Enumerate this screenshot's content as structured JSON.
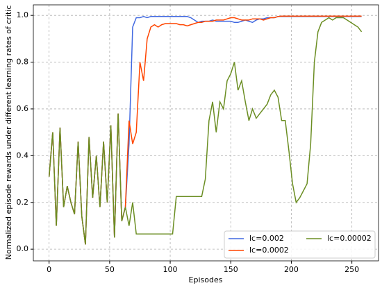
{
  "chart_data": {
    "type": "line",
    "xlabel": "Episodes",
    "ylabel": "Normalized episode rewards under different learning rates of critic",
    "x": [
      0,
      3,
      6,
      9,
      12,
      15,
      18,
      21,
      24,
      27,
      30,
      33,
      36,
      39,
      42,
      45,
      48,
      51,
      54,
      57,
      60,
      63,
      66,
      69,
      72,
      75,
      78,
      81,
      84,
      87,
      90,
      93,
      96,
      99,
      102,
      105,
      108,
      111,
      114,
      117,
      120,
      123,
      126,
      129,
      132,
      135,
      138,
      141,
      144,
      147,
      150,
      153,
      156,
      159,
      162,
      165,
      168,
      171,
      174,
      177,
      180,
      183,
      186,
      189,
      192,
      195,
      198,
      201,
      204,
      207,
      210,
      213,
      216,
      219,
      222,
      225,
      228,
      231,
      234,
      237,
      240,
      243,
      246,
      249,
      252,
      255,
      258
    ],
    "series": [
      {
        "name": "lc=0.002",
        "color": "#4169e1",
        "values": [
          0.31,
          0.5,
          0.1,
          0.52,
          0.18,
          0.27,
          0.2,
          0.15,
          0.46,
          0.14,
          0.02,
          0.48,
          0.22,
          0.4,
          0.18,
          0.46,
          0.2,
          0.53,
          0.05,
          0.58,
          0.12,
          0.18,
          0.45,
          0.95,
          0.99,
          0.99,
          0.995,
          0.99,
          0.995,
          0.995,
          0.995,
          0.995,
          0.995,
          0.995,
          0.995,
          0.995,
          0.995,
          0.995,
          0.995,
          0.99,
          0.98,
          0.97,
          0.975,
          0.975,
          0.975,
          0.98,
          0.975,
          0.975,
          0.975,
          0.975,
          0.975,
          0.97,
          0.97,
          0.975,
          0.98,
          0.975,
          0.97,
          0.98,
          0.985,
          0.985,
          0.99,
          0.99,
          0.99,
          0.995,
          0.995,
          0.995,
          0.995,
          0.995,
          0.995,
          0.995,
          0.995,
          0.995,
          0.995,
          0.995,
          0.995,
          0.995,
          0.995,
          0.995,
          0.995,
          0.995,
          0.995,
          0.995,
          0.995,
          0.995,
          0.995,
          0.995,
          0.995
        ]
      },
      {
        "name": "lc=0.0002",
        "color": "#ff4500",
        "values": [
          0.31,
          0.5,
          0.1,
          0.52,
          0.18,
          0.27,
          0.2,
          0.15,
          0.46,
          0.14,
          0.02,
          0.48,
          0.22,
          0.4,
          0.18,
          0.46,
          0.2,
          0.53,
          0.05,
          0.58,
          0.12,
          0.18,
          0.55,
          0.45,
          0.5,
          0.8,
          0.72,
          0.9,
          0.95,
          0.96,
          0.95,
          0.96,
          0.965,
          0.965,
          0.965,
          0.965,
          0.96,
          0.96,
          0.955,
          0.96,
          0.965,
          0.97,
          0.97,
          0.975,
          0.975,
          0.975,
          0.98,
          0.98,
          0.98,
          0.985,
          0.99,
          0.99,
          0.985,
          0.98,
          0.98,
          0.98,
          0.985,
          0.985,
          0.985,
          0.98,
          0.985,
          0.99,
          0.99,
          0.995,
          0.997,
          0.997,
          0.997,
          0.997,
          0.997,
          0.997,
          0.997,
          0.997,
          0.997,
          0.997,
          0.997,
          0.997,
          0.997,
          0.997,
          0.997,
          0.997,
          0.997,
          0.997,
          0.997,
          0.997,
          0.997,
          0.997,
          0.997
        ]
      },
      {
        "name": "lc=0.00002",
        "color": "#6b8e23",
        "values": [
          0.31,
          0.5,
          0.1,
          0.52,
          0.18,
          0.27,
          0.2,
          0.15,
          0.46,
          0.14,
          0.02,
          0.48,
          0.22,
          0.4,
          0.18,
          0.46,
          0.2,
          0.53,
          0.05,
          0.58,
          0.12,
          0.18,
          0.1,
          0.2,
          0.065,
          0.065,
          0.065,
          0.065,
          0.065,
          0.065,
          0.065,
          0.065,
          0.065,
          0.065,
          0.065,
          0.225,
          0.225,
          0.225,
          0.225,
          0.225,
          0.225,
          0.225,
          0.225,
          0.3,
          0.55,
          0.63,
          0.5,
          0.63,
          0.6,
          0.72,
          0.75,
          0.8,
          0.68,
          0.72,
          0.63,
          0.55,
          0.6,
          0.56,
          0.58,
          0.6,
          0.62,
          0.66,
          0.68,
          0.65,
          0.55,
          0.55,
          0.42,
          0.28,
          0.2,
          0.22,
          0.25,
          0.28,
          0.45,
          0.8,
          0.93,
          0.97,
          0.98,
          0.99,
          0.98,
          0.99,
          0.99,
          0.99,
          0.98,
          0.97,
          0.96,
          0.95,
          0.93
        ]
      }
    ],
    "xlim": [
      -13,
      272
    ],
    "ylim": [
      -0.05,
      1.045
    ],
    "xticks": [
      0,
      50,
      100,
      150,
      200,
      250
    ],
    "yticks": [
      {
        "value": 0,
        "label": "0.0"
      },
      0.2,
      0.4,
      0.6,
      0.8,
      {
        "value": 1,
        "label": "1.0"
      }
    ],
    "grid": true,
    "legend": "lower right"
  }
}
